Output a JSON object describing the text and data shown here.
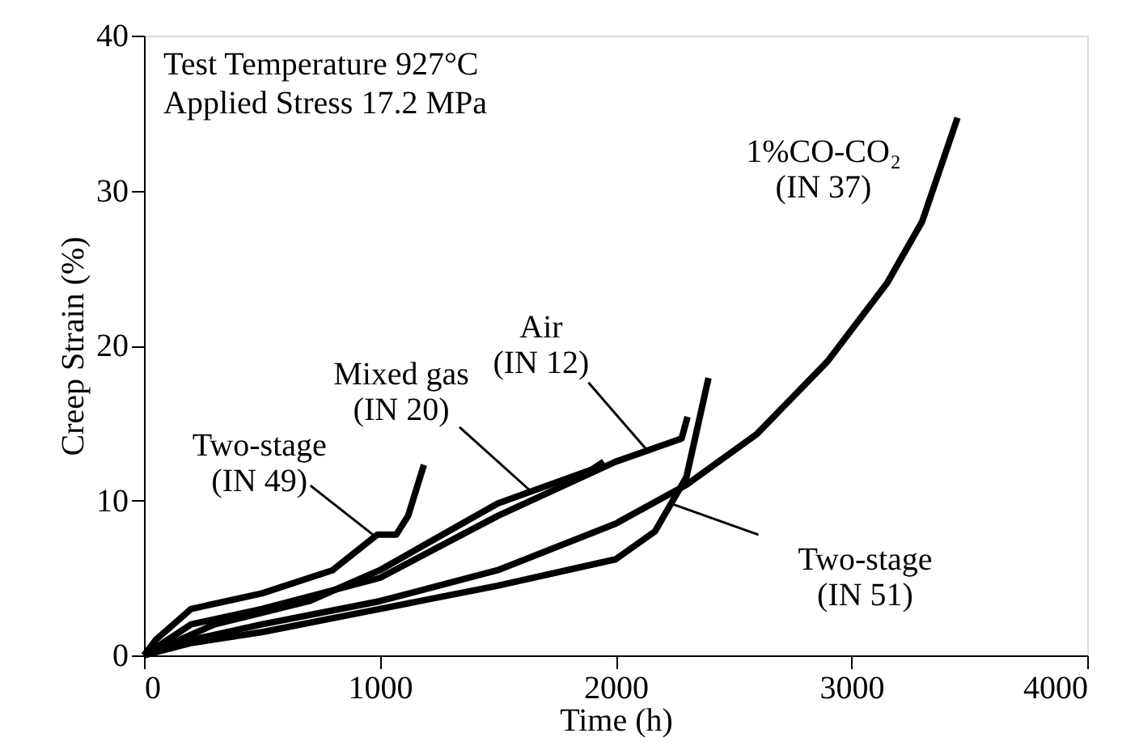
{
  "chart_data": {
    "type": "line",
    "xlabel": "Time (h)",
    "ylabel": "Creep Strain (%)",
    "xlim": [
      0,
      4000
    ],
    "ylim": [
      0,
      40
    ],
    "xticks": [
      0,
      1000,
      2000,
      3000,
      4000
    ],
    "yticks": [
      0,
      10,
      20,
      30,
      40
    ],
    "grid": false,
    "marker": "none",
    "line_style": "solid",
    "series": [
      {
        "color": "#000000",
        "x": [
          0,
          200,
          500,
          1000,
          1500,
          2000,
          2300,
          2600,
          2900,
          3150,
          3300,
          3450
        ],
        "values": [
          0,
          1,
          2,
          3.5,
          5.5,
          8.5,
          11,
          14.3,
          19,
          24,
          28,
          34.7
        ]
      },
      {
        "color": "#000000",
        "x": [
          0,
          200,
          500,
          1000,
          1500,
          2000,
          2167,
          2300,
          2394
        ],
        "values": [
          0,
          0.8,
          1.5,
          3,
          4.5,
          6.2,
          8,
          11.5,
          17.9
        ]
      },
      {
        "color": "#000000",
        "x": [
          0,
          100,
          200,
          500,
          1000,
          1500,
          2000,
          2280,
          2305
        ],
        "values": [
          0,
          1,
          2,
          3,
          5,
          9,
          12.5,
          14,
          15.4
        ]
      },
      {
        "color": "#000000",
        "x": [
          0,
          300,
          700,
          1000,
          1500,
          1900,
          1950
        ],
        "values": [
          0,
          2,
          3.5,
          5.5,
          9.8,
          12,
          12.5
        ]
      },
      {
        "color": "#000000",
        "x": [
          0,
          50,
          200,
          500,
          800,
          990,
          1070,
          1120,
          1187
        ],
        "values": [
          0,
          1,
          3,
          4,
          5.5,
          7.8,
          7.8,
          9,
          12.3
        ]
      }
    ],
    "annotations": [
      "Test Temperature 927°C",
      "Applied Stress 17.2 MPa",
      {
        "text": "Two-stage\n(IN 49)",
        "x": 970,
        "y": 7.8
      },
      {
        "text": "Mixed gas\n(IN 20)",
        "x": 1640,
        "y": 10.6
      },
      {
        "text": "Air\n(IN 12)",
        "x": 2130,
        "y": 13.3
      },
      {
        "text": "Two-stage\n(IN 51)",
        "x": 2235,
        "y": 9.8
      },
      "1%CO-CO₂\n(IN 37)"
    ]
  }
}
